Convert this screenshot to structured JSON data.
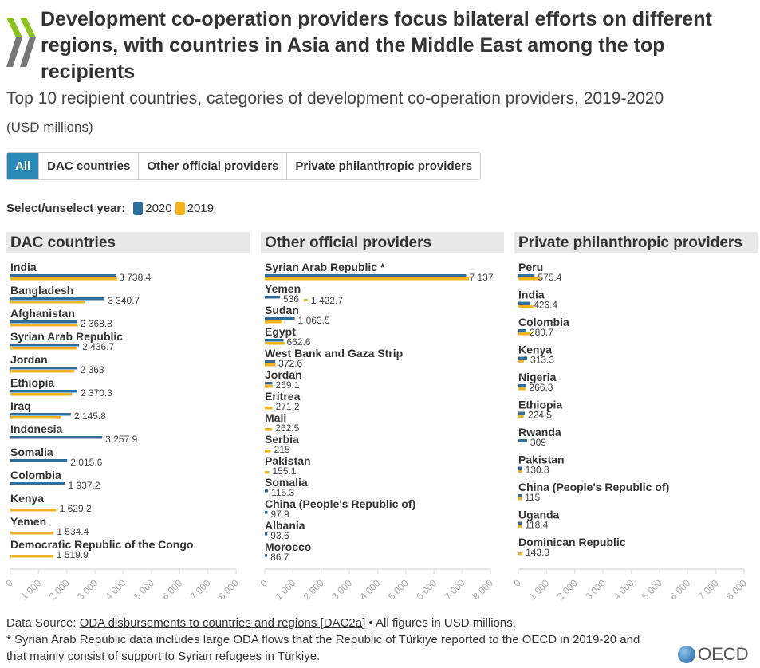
{
  "header": {
    "title": "Development co-operation providers focus bilateral efforts on different regions, with countries in Asia and the Middle East among the top recipients",
    "subtitle": "Top 10 recipient countries, categories of development co-operation providers, 2019-2020",
    "unit": "(USD millions)"
  },
  "tabs": [
    {
      "label": "All",
      "active": true
    },
    {
      "label": "DAC countries"
    },
    {
      "label": "Other official providers"
    },
    {
      "label": "Private philanthropic providers"
    }
  ],
  "legend": {
    "label": "Select/unselect year:",
    "items": [
      {
        "label": "2020",
        "color": "#2f6f9e"
      },
      {
        "label": "2019",
        "color": "#f2b31c"
      }
    ]
  },
  "chart_data": [
    {
      "type": "bar",
      "orientation": "horizontal",
      "title": "DAC countries",
      "xlim": [
        0,
        8000
      ],
      "ticks": [
        "0",
        "1 000",
        "2 000",
        "3 000",
        "4 000",
        "5 000",
        "6 000",
        "7 000",
        "8 000"
      ],
      "series": [
        {
          "name": "2020"
        },
        {
          "name": "2019"
        }
      ],
      "rows": [
        {
          "name": "India",
          "v2020": 3738.4,
          "v2019": 3790,
          "label": "3 738.4"
        },
        {
          "name": "Bangladesh",
          "v2020": 3340.7,
          "v2019": 2660,
          "label": "3 340.7"
        },
        {
          "name": "Afghanistan",
          "v2020": 2368.8,
          "v2019": 2390,
          "label": "2 368.8"
        },
        {
          "name": "Syrian Arab Republic",
          "v2020": 2436.7,
          "v2019": 2340,
          "label": "2 436.7"
        },
        {
          "name": "Jordan",
          "v2020": 2363,
          "v2019": 2270,
          "label": "2 363"
        },
        {
          "name": "Ethiopia",
          "v2020": 2370.3,
          "v2019": 2180,
          "label": "2 370.3"
        },
        {
          "name": "Iraq",
          "v2020": 2145.8,
          "v2019": 1810,
          "label": "2 145.8"
        },
        {
          "name": "Indonesia",
          "v2020": 3257.9,
          "v2019": null,
          "label": "3 257.9"
        },
        {
          "name": "Somalia",
          "v2020": 2015.6,
          "v2019": null,
          "label": "2 015.6"
        },
        {
          "name": "Colombia",
          "v2020": 1937.2,
          "v2019": null,
          "label": "1 937.2"
        },
        {
          "name": "Kenya",
          "v2020": null,
          "v2019": 1629.2,
          "label": "1 629.2"
        },
        {
          "name": "Yemen",
          "v2020": null,
          "v2019": 1534.4,
          "label": "1 534.4"
        },
        {
          "name": "Democratic Republic of the Congo",
          "v2020": null,
          "v2019": 1519.9,
          "label": "1 519.9"
        }
      ]
    },
    {
      "type": "bar",
      "orientation": "horizontal",
      "title": "Other official providers",
      "xlim": [
        0,
        8000
      ],
      "ticks": [
        "0",
        "1 000",
        "2 000",
        "3 000",
        "4 000",
        "5 000",
        "6 000",
        "7 000",
        "8 000"
      ],
      "series": [
        {
          "name": "2020"
        },
        {
          "name": "2019"
        }
      ],
      "rows": [
        {
          "name": "Syrian Arab Republic *",
          "v2020": 7137,
          "v2019": 7240,
          "label": "7 137"
        },
        {
          "name": "Yemen",
          "v2020": 536,
          "v2019": 1422.7,
          "label": "536",
          "label2": "1 422.7"
        },
        {
          "name": "Sudan",
          "v2020": 1063.5,
          "v2019": 620,
          "label": "1 063.5"
        },
        {
          "name": "Egypt",
          "v2020": 662.6,
          "v2019": 720,
          "label": "662.6"
        },
        {
          "name": "West Bank and Gaza Strip",
          "v2020": 372.6,
          "v2019": 380,
          "label": "372.6"
        },
        {
          "name": "Jordan",
          "v2020": 269.1,
          "v2019": 280,
          "label": "269.1"
        },
        {
          "name": "Eritrea",
          "v2020": null,
          "v2019": 271.2,
          "label": "271.2"
        },
        {
          "name": "Mali",
          "v2020": null,
          "v2019": 262.5,
          "label": "262.5"
        },
        {
          "name": "Serbia",
          "v2020": null,
          "v2019": 215,
          "label": "215"
        },
        {
          "name": "Pakistan",
          "v2020": null,
          "v2019": 155.1,
          "label": "155.1"
        },
        {
          "name": "Somalia",
          "v2020": 115.3,
          "v2019": null,
          "label": "115.3"
        },
        {
          "name": "China (People's Republic of)",
          "v2020": 97.9,
          "v2019": null,
          "label": "97.9"
        },
        {
          "name": "Albania",
          "v2020": 93.6,
          "v2019": null,
          "label": "93.6"
        },
        {
          "name": "Morocco",
          "v2020": 86.7,
          "v2019": null,
          "label": "86.7"
        }
      ]
    },
    {
      "type": "bar",
      "orientation": "horizontal",
      "title": "Private philanthropic providers",
      "xlim": [
        0,
        8000
      ],
      "ticks": [
        "0",
        "1 000",
        "2 000",
        "3 000",
        "4 000",
        "5 000",
        "6 000",
        "7 000",
        "8 000"
      ],
      "series": [
        {
          "name": "2020"
        },
        {
          "name": "2019"
        }
      ],
      "rows": [
        {
          "name": "Peru",
          "v2020": 575.4,
          "v2019": 780,
          "label": "575.4"
        },
        {
          "name": "India",
          "v2020": 426.4,
          "v2019": 530,
          "label": "426.4"
        },
        {
          "name": "Colombia",
          "v2020": 280.7,
          "v2019": 440,
          "label": "280.7"
        },
        {
          "name": "Kenya",
          "v2020": 313.3,
          "v2019": 190,
          "label": "313.3"
        },
        {
          "name": "Nigeria",
          "v2020": 266.3,
          "v2019": 250,
          "label": "266.3"
        },
        {
          "name": "Ethiopia",
          "v2020": 224.5,
          "v2019": 190,
          "label": "224.5"
        },
        {
          "name": "Rwanda",
          "v2020": 309,
          "v2019": null,
          "label": "309"
        },
        {
          "name": "Pakistan",
          "v2020": 130.8,
          "v2019": 130,
          "label": "130.8"
        },
        {
          "name": "China (People's Republic of)",
          "v2020": 115,
          "v2019": 120,
          "label": "115"
        },
        {
          "name": "Uganda",
          "v2020": 118.4,
          "v2019": 115,
          "label": "118.4"
        },
        {
          "name": "Dominican Republic",
          "v2020": null,
          "v2019": 143.3,
          "label": "143.3"
        }
      ]
    }
  ],
  "footer": {
    "source_prefix": "Data Source: ",
    "source_link": "ODA disbursements to countries and regions [DAC2a]",
    "source_suffix": " • All figures in USD millions.",
    "note": "* Syrian Arab Republic data includes large ODA flows that the Republic of Türkiye reported to the OECD in 2019-20 and that mainly consist of support to Syrian refugees in Türkiye.",
    "logo_text": "OECD"
  }
}
